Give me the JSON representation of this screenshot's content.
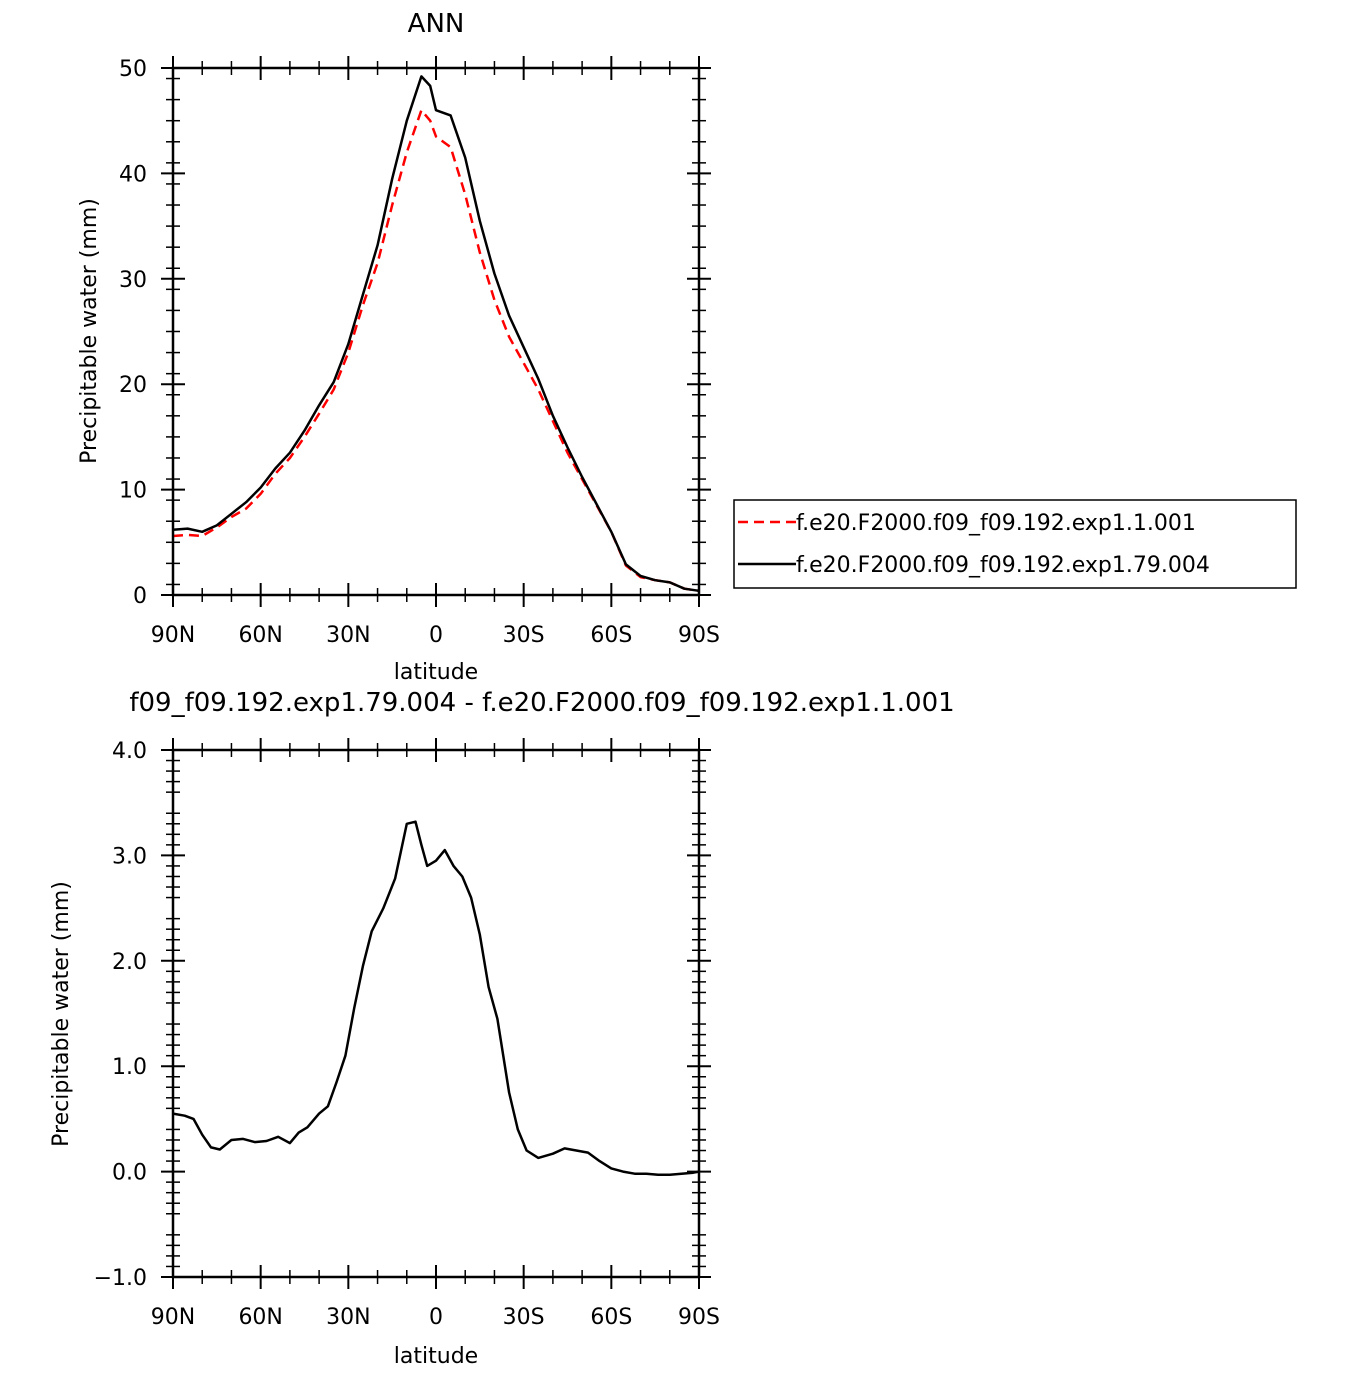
{
  "chart_data": [
    {
      "type": "line",
      "title": "ANN",
      "xlabel": "latitude",
      "ylabel": "Precipitable water (mm)",
      "xlim": [
        90,
        -90
      ],
      "ylim": [
        0,
        50
      ],
      "x_ticks": [
        {
          "value": 90,
          "label": "90N"
        },
        {
          "value": 60,
          "label": "60N"
        },
        {
          "value": 30,
          "label": "30N"
        },
        {
          "value": 0,
          "label": "0"
        },
        {
          "value": -30,
          "label": "30S"
        },
        {
          "value": -60,
          "label": "60S"
        },
        {
          "value": -90,
          "label": "90S"
        }
      ],
      "y_ticks": [
        {
          "value": 0,
          "label": "0"
        },
        {
          "value": 10,
          "label": "10"
        },
        {
          "value": 20,
          "label": "20"
        },
        {
          "value": 30,
          "label": "30"
        },
        {
          "value": 40,
          "label": "40"
        },
        {
          "value": 50,
          "label": "50"
        }
      ],
      "legend_position": "right",
      "series": [
        {
          "name": "f.e20.F2000.f09_f09.192.exp1.1.001",
          "color": "#ff0000",
          "style": "dashed",
          "x": [
            90,
            85,
            80,
            75,
            70,
            65,
            60,
            55,
            50,
            45,
            40,
            35,
            30,
            25,
            20,
            15,
            10,
            5,
            2,
            0,
            -5,
            -10,
            -15,
            -20,
            -25,
            -30,
            -35,
            -40,
            -45,
            -50,
            -55,
            -60,
            -65,
            -70,
            -75,
            -80,
            -85,
            -90
          ],
          "y": [
            5.6,
            5.7,
            5.6,
            6.4,
            7.4,
            8.2,
            9.6,
            11.5,
            13.0,
            15.0,
            17.2,
            19.5,
            23.0,
            27.5,
            31.5,
            37.0,
            42.0,
            46.0,
            45.0,
            43.5,
            42.5,
            38.0,
            32.5,
            28.0,
            24.5,
            22.0,
            19.5,
            16.5,
            13.5,
            11.0,
            8.5,
            6.0,
            2.8,
            1.7,
            1.4,
            1.2,
            0.6,
            0.4
          ]
        },
        {
          "name": "f.e20.F2000.f09_f09.192.exp1.79.004",
          "color": "#000000",
          "style": "solid",
          "x": [
            90,
            85,
            80,
            75,
            70,
            65,
            60,
            55,
            50,
            45,
            40,
            35,
            30,
            25,
            20,
            15,
            10,
            5,
            2,
            0,
            -5,
            -10,
            -15,
            -20,
            -25,
            -30,
            -35,
            -40,
            -45,
            -50,
            -55,
            -60,
            -65,
            -70,
            -75,
            -80,
            -85,
            -90
          ],
          "y": [
            6.2,
            6.3,
            6.0,
            6.6,
            7.7,
            8.8,
            10.2,
            12.0,
            13.5,
            15.6,
            18.0,
            20.2,
            23.8,
            28.5,
            33.2,
            39.5,
            45.0,
            49.2,
            48.3,
            46.0,
            45.5,
            41.5,
            35.5,
            30.5,
            26.5,
            23.5,
            20.5,
            17.0,
            14.0,
            11.2,
            8.6,
            6.0,
            2.9,
            1.8,
            1.4,
            1.2,
            0.6,
            0.4
          ]
        }
      ]
    },
    {
      "type": "line",
      "title": "f09_f09.192.exp1.79.004 - f.e20.F2000.f09_f09.192.exp1.1.001",
      "xlabel": "latitude",
      "ylabel": "Precipitable water (mm)",
      "xlim": [
        90,
        -90
      ],
      "ylim": [
        -1.0,
        4.0
      ],
      "x_ticks": [
        {
          "value": 90,
          "label": "90N"
        },
        {
          "value": 60,
          "label": "60N"
        },
        {
          "value": 30,
          "label": "30N"
        },
        {
          "value": 0,
          "label": "0"
        },
        {
          "value": -30,
          "label": "30S"
        },
        {
          "value": -60,
          "label": "60S"
        },
        {
          "value": -90,
          "label": "90S"
        }
      ],
      "y_ticks": [
        {
          "value": -1.0,
          "label": "−1.0"
        },
        {
          "value": 0.0,
          "label": "0.0"
        },
        {
          "value": 1.0,
          "label": "1.0"
        },
        {
          "value": 2.0,
          "label": "2.0"
        },
        {
          "value": 3.0,
          "label": "3.0"
        },
        {
          "value": 4.0,
          "label": "4.0"
        }
      ],
      "series": [
        {
          "color": "#000000",
          "style": "solid",
          "x": [
            90,
            86,
            83,
            80,
            77,
            74,
            70,
            66,
            62,
            58,
            54,
            50,
            47,
            44,
            40,
            37,
            34,
            31,
            28,
            25,
            22,
            18,
            14,
            10,
            7,
            5,
            3,
            0,
            -3,
            -6,
            -9,
            -12,
            -15,
            -18,
            -21,
            -25,
            -28,
            -31,
            -35,
            -40,
            -44,
            -48,
            -52,
            -56,
            -60,
            -64,
            -68,
            -72,
            -76,
            -80,
            -84,
            -88,
            -90
          ],
          "y": [
            0.55,
            0.53,
            0.5,
            0.35,
            0.23,
            0.21,
            0.3,
            0.31,
            0.28,
            0.29,
            0.33,
            0.27,
            0.37,
            0.42,
            0.55,
            0.62,
            0.85,
            1.1,
            1.55,
            1.95,
            2.28,
            2.5,
            2.78,
            3.3,
            3.32,
            3.1,
            2.9,
            2.95,
            3.05,
            2.9,
            2.8,
            2.6,
            2.25,
            1.75,
            1.45,
            0.75,
            0.4,
            0.2,
            0.13,
            0.17,
            0.22,
            0.2,
            0.18,
            0.1,
            0.03,
            0.0,
            -0.02,
            -0.02,
            -0.03,
            -0.03,
            -0.02,
            -0.01,
            0.0
          ]
        }
      ]
    }
  ]
}
